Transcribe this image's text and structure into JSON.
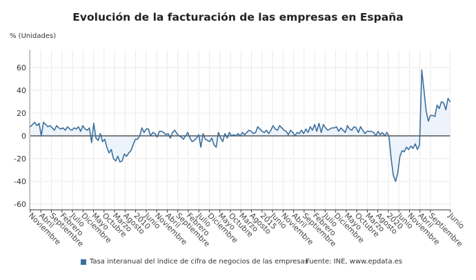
{
  "chart_data": {
    "type": "area",
    "title": "Evolución de la facturación de las empresas en España",
    "ylabel": "% (Unidades)",
    "xlabel": "",
    "ylim": [
      -65,
      75
    ],
    "yticks": [
      -60,
      -40,
      -20,
      0,
      20,
      40,
      60
    ],
    "grid": true,
    "legend_position": "bottom",
    "x_tick_labels": [
      "Noviembre",
      "Abril",
      "Septiembre",
      "Febrero",
      "Julio",
      "Diciembre",
      "Mayo",
      "Octubre",
      "Marzo",
      "Agosto",
      "2010",
      "Junio",
      "Noviembre",
      "Abril",
      "Septiembre",
      "Febrero",
      "Julio",
      "Diciembre",
      "Mayo",
      "Octubre",
      "Marzo",
      "Agosto",
      "2015",
      "Junio",
      "Noviembre",
      "Abril",
      "Septiembre",
      "Febrero",
      "Julio",
      "Diciembre",
      "Mayo",
      "Octubre",
      "Marzo",
      "Agosto",
      "2020",
      "Junio",
      "Noviembre",
      "Abril",
      "Septiembre",
      "Junio"
    ],
    "series": [
      {
        "name": "Tasa interanual del índice de cifra de negocios de las empresas",
        "color": "#3c6e9c",
        "fill": "#eaf2f9",
        "values": [
          8,
          10,
          12,
          9,
          11,
          0,
          12,
          10,
          8,
          9,
          7,
          5,
          9,
          7,
          6,
          7,
          5,
          8,
          6,
          5,
          7,
          6,
          8,
          4,
          9,
          6,
          5,
          7,
          -6,
          11,
          -2,
          -4,
          2,
          -5,
          -3,
          -10,
          -15,
          -12,
          -20,
          -22,
          -18,
          -23,
          -22,
          -16,
          -18,
          -15,
          -13,
          -8,
          -3,
          -3,
          0,
          7,
          3,
          6,
          6,
          0,
          3,
          2,
          -1,
          4,
          4,
          3,
          1,
          2,
          -2,
          3,
          5,
          2,
          0,
          -1,
          -3,
          0,
          3,
          -2,
          -5,
          -4,
          -2,
          1,
          -10,
          2,
          -3,
          -4,
          -5,
          -2,
          -8,
          -10,
          3,
          -2,
          -5,
          2,
          -2,
          3,
          0,
          1,
          0,
          2,
          0,
          3,
          1,
          3,
          5,
          4,
          2,
          3,
          8,
          6,
          4,
          3,
          5,
          2,
          5,
          9,
          6,
          5,
          9,
          7,
          5,
          4,
          1,
          5,
          3,
          0,
          3,
          2,
          5,
          2,
          6,
          3,
          8,
          5,
          10,
          4,
          11,
          3,
          10,
          7,
          5,
          6,
          7,
          7,
          8,
          4,
          7,
          5,
          3,
          9,
          6,
          5,
          8,
          7,
          3,
          8,
          5,
          2,
          4,
          4,
          4,
          3,
          0,
          4,
          1,
          3,
          0,
          3,
          0,
          -20,
          -35,
          -40,
          -33,
          -18,
          -13,
          -14,
          -10,
          -12,
          -9,
          -11,
          -7,
          -12,
          -8,
          58,
          40,
          22,
          13,
          18,
          18,
          17,
          27,
          24,
          30,
          29,
          23,
          33,
          30
        ]
      }
    ]
  },
  "source": "Fuente: INE, www.epdata.es"
}
